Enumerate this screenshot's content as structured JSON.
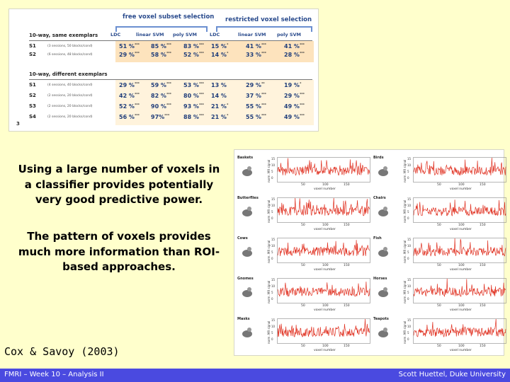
{
  "table": {
    "group_headers": [
      "free voxel subset selection",
      "restricted voxel selection"
    ],
    "columns": [
      "LDC",
      "linear SVM",
      "poly SVM",
      "LDC",
      "linear SVM",
      "poly SVM"
    ],
    "section1_title": "10-way, same exemplars",
    "section2_title": "10-way, different exemplars",
    "section1_rows": [
      {
        "id": "S1",
        "sub": "(3 sessions, 50 blocks/cond)",
        "cells": [
          [
            "51 %",
            "***"
          ],
          [
            "85 %",
            "***"
          ],
          [
            "83 %",
            "***"
          ],
          [
            "15 %",
            "*"
          ],
          [
            "41 %",
            "***"
          ],
          [
            "41 %",
            "***"
          ]
        ]
      },
      {
        "id": "S2",
        "sub": "(6 sessions, 48 blocks/cond)",
        "cells": [
          [
            "29 %",
            "***"
          ],
          [
            "58 %",
            "***"
          ],
          [
            "52 %",
            "***"
          ],
          [
            "14 %",
            "*"
          ],
          [
            "33 %",
            "***"
          ],
          [
            "28 %",
            "***"
          ]
        ]
      }
    ],
    "section2_rows": [
      {
        "id": "S1",
        "sub": "(4 sessions, 40 blocks/cond)",
        "cells": [
          [
            "29 %",
            "***"
          ],
          [
            "59 %",
            "***"
          ],
          [
            "53 %",
            "***"
          ],
          [
            "13 %",
            ""
          ],
          [
            "29 %",
            "**"
          ],
          [
            "19 %",
            "*"
          ]
        ]
      },
      {
        "id": "S2",
        "sub": "(2 sessions, 20 blocks/cond)",
        "cells": [
          [
            "42 %",
            "***"
          ],
          [
            "82 %",
            "***"
          ],
          [
            "80 %",
            "***"
          ],
          [
            "14 %",
            ""
          ],
          [
            "37 %",
            "***"
          ],
          [
            "29 %",
            "***"
          ]
        ]
      },
      {
        "id": "S3",
        "sub": "(2 sessions, 20 blocks/cond)",
        "cells": [
          [
            "52 %",
            "***"
          ],
          [
            "90 %",
            "***"
          ],
          [
            "93 %",
            "***"
          ],
          [
            "21 %",
            "*"
          ],
          [
            "55 %",
            "***"
          ],
          [
            "49 %",
            "***"
          ]
        ]
      },
      {
        "id": "S4",
        "sub": "(2 sessions, 20 blocks/cond)",
        "cells": [
          [
            "56 %",
            "***"
          ],
          [
            "97%",
            "***"
          ],
          [
            "88 %",
            "***"
          ],
          [
            "21 %",
            "*"
          ],
          [
            "55 %",
            "***"
          ],
          [
            "49 %",
            "***"
          ]
        ]
      }
    ],
    "slide_number": "3",
    "band_colors": [
      "#fde3bd",
      "#fff3dc"
    ]
  },
  "text": {
    "paragraph1": "Using a large number of voxels in a classifier provides potentially very good predictive power.",
    "paragraph2": "The pattern of voxels provides much more information than ROI-based approaches.",
    "citation": "Cox & Savoy (2003)"
  },
  "voxel_figure": {
    "categories": [
      "Baskets",
      "Birds",
      "Butterflies",
      "Chairs",
      "Cows",
      "Fish",
      "Gnomes",
      "Horses",
      "Masks",
      "Teapots"
    ],
    "y_axis_title": "norm. MR signal",
    "x_axis_title": "voxel number",
    "y_ticks": [
      "15",
      "10",
      "5",
      "0"
    ],
    "x_ticks": [
      "50",
      "100",
      "150"
    ],
    "line_color": "#e03020"
  },
  "footer": {
    "left": "FMRI – Week 10 – Analysis II",
    "right": "Scott Huettel, Duke University",
    "bar_color": "#4a4ae0"
  }
}
